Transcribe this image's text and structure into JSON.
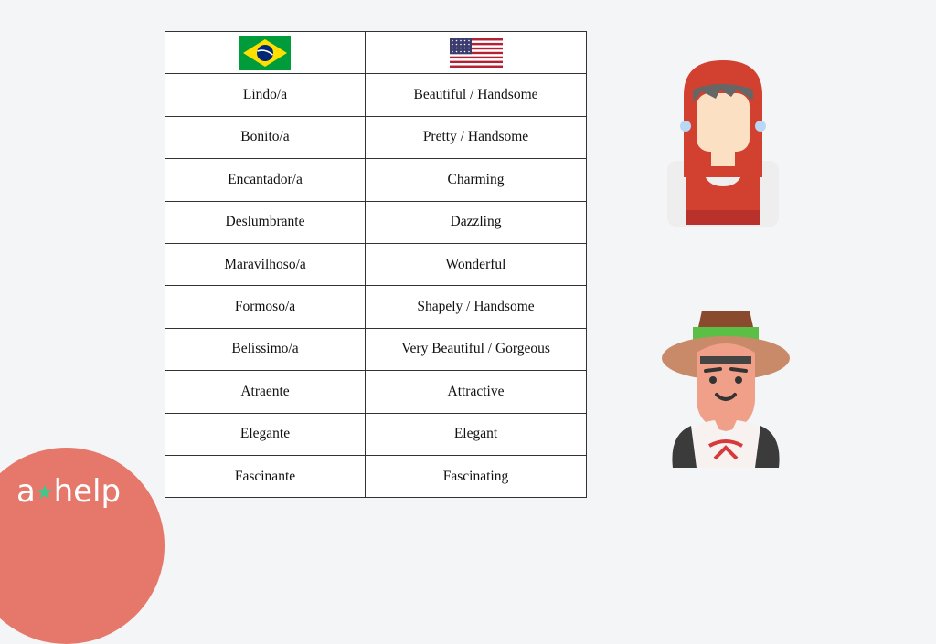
{
  "table": {
    "header_flags": [
      {
        "icon": "brazil-flag-icon",
        "colors": [
          "#009c3b",
          "#ffdf00",
          "#002776"
        ]
      },
      {
        "icon": "usa-flag-icon",
        "colors": [
          "#b22234",
          "#ffffff",
          "#3c3b6e"
        ]
      }
    ],
    "rows": [
      [
        "Lindo/a",
        "Beautiful / Handsome"
      ],
      [
        "Bonito/a",
        "Pretty / Handsome"
      ],
      [
        "Encantador/a",
        "Charming"
      ],
      [
        "Deslumbrante",
        "Dazzling"
      ],
      [
        "Maravilhoso/a",
        "Wonderful"
      ],
      [
        "Formoso/a",
        "Shapely / Handsome"
      ],
      [
        "Belíssimo/a",
        "Very Beautiful / Gorgeous"
      ],
      [
        "Atraente",
        "Attractive"
      ],
      [
        "Elegante",
        "Elegant"
      ],
      [
        "Fascinante",
        "Fascinating"
      ]
    ]
  },
  "illustrations": [
    "woman-traditional-costume-icon",
    "man-hat-costume-icon"
  ],
  "logo": {
    "text_left": "a",
    "text_right": "help",
    "color": "#e5786a",
    "star_color": "#3ec98a"
  }
}
